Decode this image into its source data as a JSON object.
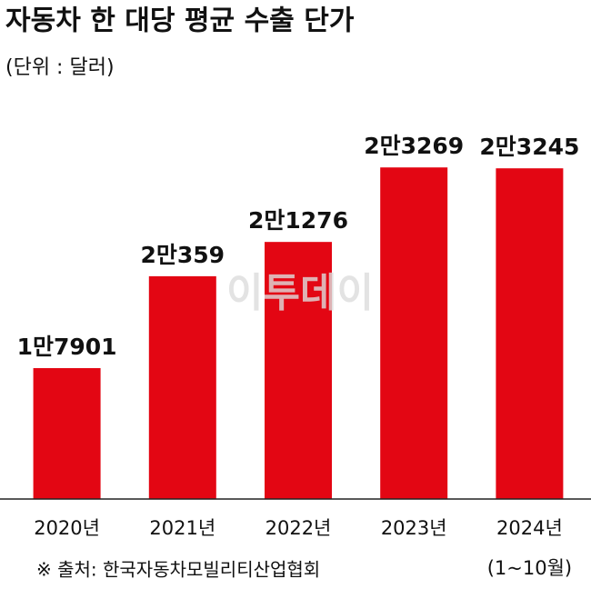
{
  "chart_data": {
    "type": "bar",
    "title": "자동차 한 대당 평균 수출 단가",
    "subtitle": "(단위 : 달러)",
    "categories": [
      "2020년",
      "2021년",
      "2022년",
      "2023년",
      "2024년"
    ],
    "category_note": "(1~10월)",
    "values": [
      17901,
      20359,
      21276,
      23269,
      23245
    ],
    "value_labels": [
      "1만7901",
      "2만359",
      "2만1276",
      "2만3269",
      "2만3245"
    ],
    "color": "#e30613",
    "ylim": [
      14400,
      25000
    ],
    "source": "※ 출처: 한국자동차모빌리티산업협회",
    "watermark": "이투데이"
  }
}
